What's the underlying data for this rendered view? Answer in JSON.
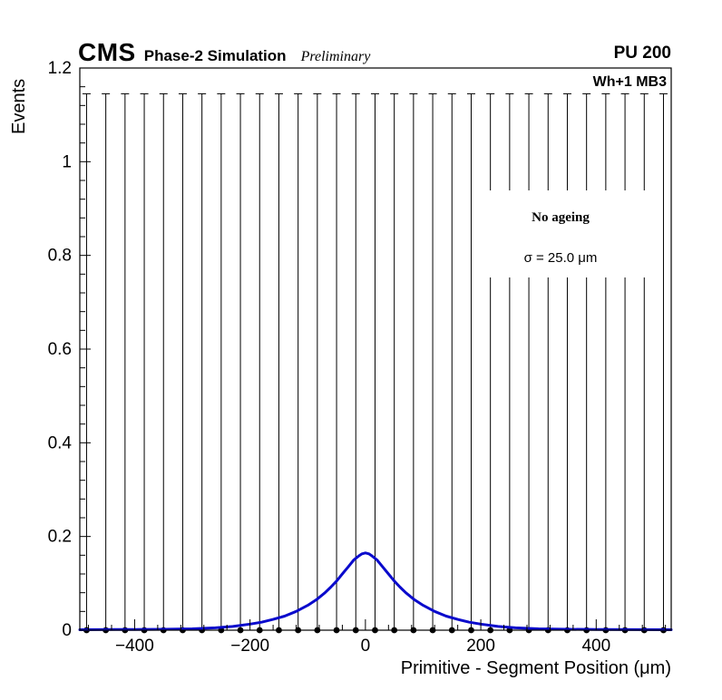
{
  "header": {
    "experiment": "CMS",
    "simulation_label": "Phase-2 Simulation",
    "preliminary_label": "Preliminary",
    "pileup_label": "PU 200"
  },
  "annotations": {
    "station_label": "Wh+1 MB3",
    "legend_title": "No ageing",
    "legend_resolution": "σ = 25.0 μm"
  },
  "chart_data": {
    "type": "scatter",
    "title": "",
    "xlabel": "Primitive - Segment Position (μm)",
    "ylabel": "Events",
    "xlim": [
      -495,
      530
    ],
    "ylim": [
      0,
      1.2
    ],
    "grid": false,
    "legend_position": "upper-right-inside",
    "x_major_ticks": {
      "values": [
        -400,
        -200,
        0,
        200,
        400
      ],
      "labels": [
        "−400",
        "−200",
        "0",
        "200",
        "400"
      ]
    },
    "y_major_ticks": {
      "values": [
        0,
        0.2,
        0.4,
        0.6,
        0.8,
        1,
        1.2
      ],
      "labels": [
        "0",
        "0.2",
        "0.4",
        "0.6",
        "0.8",
        "1",
        "1.2"
      ]
    },
    "x_minor_step": 40,
    "y_minor_step": 0.04,
    "data_points": {
      "description": "histogram bin markers, all at y=0 with large symmetric-style error bars reaching 1.145",
      "first_center": -483.3,
      "spacing": 33.33,
      "count": 31,
      "value": 0,
      "error_low": 0,
      "error_high": 1.145,
      "marker_color": "#000000",
      "marker_radius_px": 3.4
    },
    "fit_curve": {
      "color": "#0a0acc",
      "line_width": 3,
      "points": [
        [
          -495,
          0.001
        ],
        [
          -400,
          0.0015
        ],
        [
          -350,
          0.002
        ],
        [
          -300,
          0.003
        ],
        [
          -260,
          0.005
        ],
        [
          -230,
          0.008
        ],
        [
          -200,
          0.013
        ],
        [
          -180,
          0.017
        ],
        [
          -160,
          0.023
        ],
        [
          -140,
          0.03
        ],
        [
          -120,
          0.04
        ],
        [
          -100,
          0.053
        ],
        [
          -85,
          0.065
        ],
        [
          -70,
          0.08
        ],
        [
          -60,
          0.092
        ],
        [
          -50,
          0.105
        ],
        [
          -40,
          0.12
        ],
        [
          -30,
          0.135
        ],
        [
          -20,
          0.15
        ],
        [
          -12,
          0.158
        ],
        [
          -6,
          0.163
        ],
        [
          0,
          0.165
        ],
        [
          6,
          0.163
        ],
        [
          12,
          0.158
        ],
        [
          20,
          0.15
        ],
        [
          30,
          0.135
        ],
        [
          40,
          0.12
        ],
        [
          50,
          0.105
        ],
        [
          60,
          0.092
        ],
        [
          70,
          0.08
        ],
        [
          85,
          0.065
        ],
        [
          100,
          0.053
        ],
        [
          120,
          0.04
        ],
        [
          140,
          0.03
        ],
        [
          160,
          0.023
        ],
        [
          180,
          0.017
        ],
        [
          200,
          0.013
        ],
        [
          230,
          0.008
        ],
        [
          260,
          0.005
        ],
        [
          300,
          0.003
        ],
        [
          350,
          0.002
        ],
        [
          400,
          0.0015
        ],
        [
          530,
          0.001
        ]
      ]
    },
    "axis_color": "#000000"
  }
}
